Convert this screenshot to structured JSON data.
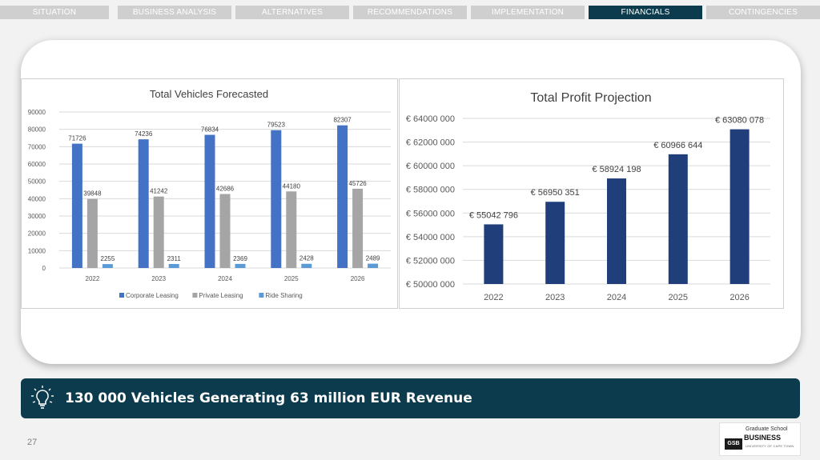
{
  "tabs": [
    {
      "label": "SITUATION",
      "active": false
    },
    {
      "label": "BUSINESS ANALYSIS",
      "active": false
    },
    {
      "label": "ALTERNATIVES",
      "active": false
    },
    {
      "label": "RECOMMENDATIONS",
      "active": false
    },
    {
      "label": "IMPLEMENTATION",
      "active": false
    },
    {
      "label": "FINANCIALS",
      "active": true
    },
    {
      "label": "CONTINGENCIES",
      "active": false
    }
  ],
  "colors": {
    "tab_inactive": "#cfcfcf",
    "tab_active": "#0c3b4d",
    "banner": "#0c3b4d",
    "corporate": "#4472c4",
    "private": "#a5a5a5",
    "ride": "#5b9bd5",
    "profit": "#203f7a"
  },
  "banner": {
    "icon": "lightbulb-icon",
    "text": "130 000 Vehicles Generating 63 million EUR Revenue"
  },
  "page_number": "27",
  "logo": {
    "mark": "GSB",
    "line1": "Graduate School",
    "line2": "BUSINESS",
    "line3": "UNIVERSITY OF CAPE TOWN"
  },
  "chart_data": [
    {
      "type": "bar",
      "title": "Total Vehicles Forecasted",
      "categories": [
        "2022",
        "2023",
        "2024",
        "2025",
        "2026"
      ],
      "series": [
        {
          "name": "Corporate Leasing",
          "values": [
            71726,
            74236,
            76834,
            79523,
            82307
          ]
        },
        {
          "name": "Private Leasing",
          "values": [
            39848,
            41242,
            42686,
            44180,
            45726
          ]
        },
        {
          "name": "Ride Sharing",
          "values": [
            2255,
            2311,
            2369,
            2428,
            2489
          ]
        }
      ],
      "yticks": [
        "0",
        "10000",
        "20000",
        "30000",
        "40000",
        "50000",
        "60000",
        "70000",
        "80000",
        "90000"
      ],
      "ylim": [
        0,
        90000
      ],
      "grid": true,
      "legend": "bottom"
    },
    {
      "type": "bar",
      "title": "Total Profit Projection",
      "categories": [
        "2022",
        "2023",
        "2024",
        "2025",
        "2026"
      ],
      "values": [
        55042796,
        56950351,
        58924198,
        60966644,
        63080078
      ],
      "value_labels": [
        "€ 55042 796",
        "€ 56950 351",
        "€ 58924 198",
        "€ 60966 644",
        "€ 63080 078"
      ],
      "yticks": [
        "€ 50000 000",
        "€ 52000 000",
        "€ 54000 000",
        "€ 56000 000",
        "€ 58000 000",
        "€ 60000 000",
        "€ 62000 000",
        "€ 64000 000"
      ],
      "ylim": [
        50000000,
        64000000
      ],
      "grid": true,
      "legend": "none"
    }
  ]
}
